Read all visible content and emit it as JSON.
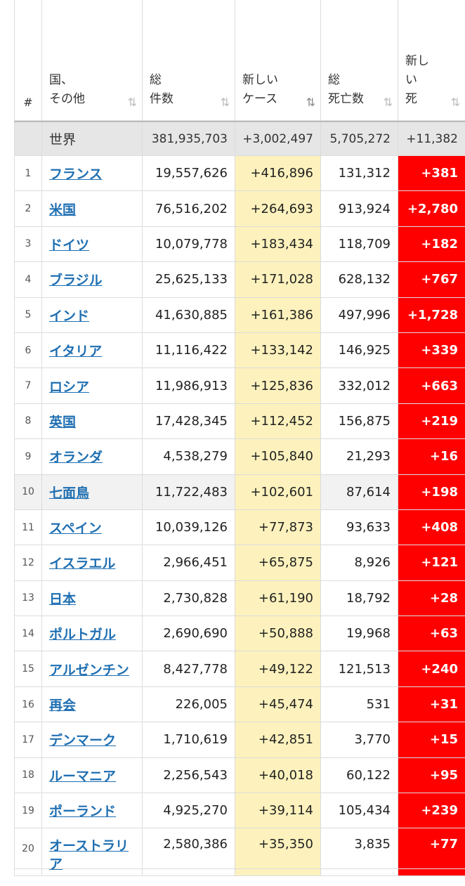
{
  "header": {
    "num": "#",
    "country": "国、\nその他",
    "total_cases": "総\n件数",
    "new_cases": "新しい\nケース",
    "total_deaths": "総\n死亡数",
    "new_deaths": "新し\nい\n死",
    "sort_icon": "⇅"
  },
  "world": {
    "label": "世界",
    "total_cases": "381,935,703",
    "new_cases": "+3,002,497",
    "total_deaths": "5,705,272",
    "new_deaths": "+11,382"
  },
  "rows": [
    {
      "num": "1",
      "country": "フランス",
      "total": "19,557,626",
      "new": "+416,896",
      "deaths": "131,312",
      "new_deaths": "+381"
    },
    {
      "num": "2",
      "country": "米国",
      "total": "76,516,202",
      "new": "+264,693",
      "deaths": "913,924",
      "new_deaths": "+2,780"
    },
    {
      "num": "3",
      "country": "ドイツ",
      "total": "10,079,778",
      "new": "+183,434",
      "deaths": "118,709",
      "new_deaths": "+182"
    },
    {
      "num": "4",
      "country": "ブラジル",
      "total": "25,625,133",
      "new": "+171,028",
      "deaths": "628,132",
      "new_deaths": "+767"
    },
    {
      "num": "5",
      "country": "インド",
      "total": "41,630,885",
      "new": "+161,386",
      "deaths": "497,996",
      "new_deaths": "+1,728"
    },
    {
      "num": "6",
      "country": "イタリア",
      "total": "11,116,422",
      "new": "+133,142",
      "deaths": "146,925",
      "new_deaths": "+339"
    },
    {
      "num": "7",
      "country": "ロシア",
      "total": "11,986,913",
      "new": "+125,836",
      "deaths": "332,012",
      "new_deaths": "+663"
    },
    {
      "num": "8",
      "country": "英国",
      "total": "17,428,345",
      "new": "+112,452",
      "deaths": "156,875",
      "new_deaths": "+219"
    },
    {
      "num": "9",
      "country": "オランダ",
      "total": "4,538,279",
      "new": "+105,840",
      "deaths": "21,293",
      "new_deaths": "+16"
    },
    {
      "num": "10",
      "country": "七面鳥",
      "total": "11,722,483",
      "new": "+102,601",
      "deaths": "87,614",
      "new_deaths": "+198"
    },
    {
      "num": "11",
      "country": "スペイン",
      "total": "10,039,126",
      "new": "+77,873",
      "deaths": "93,633",
      "new_deaths": "+408"
    },
    {
      "num": "12",
      "country": "イスラエル",
      "total": "2,966,451",
      "new": "+65,875",
      "deaths": "8,926",
      "new_deaths": "+121"
    },
    {
      "num": "13",
      "country": "日本",
      "total": "2,730,828",
      "new": "+61,190",
      "deaths": "18,792",
      "new_deaths": "+28"
    },
    {
      "num": "14",
      "country": "ポルトガル",
      "total": "2,690,690",
      "new": "+50,888",
      "deaths": "19,968",
      "new_deaths": "+63"
    },
    {
      "num": "15",
      "country": "アルゼンチン",
      "total": "8,427,778",
      "new": "+49,122",
      "deaths": "121,513",
      "new_deaths": "+240"
    },
    {
      "num": "16",
      "country": "再会",
      "total": "226,005",
      "new": "+45,474",
      "deaths": "531",
      "new_deaths": "+31"
    },
    {
      "num": "17",
      "country": "デンマーク",
      "total": "1,710,619",
      "new": "+42,851",
      "deaths": "3,770",
      "new_deaths": "+15"
    },
    {
      "num": "18",
      "country": "ルーマニア",
      "total": "2,256,543",
      "new": "+40,018",
      "deaths": "60,122",
      "new_deaths": "+95"
    },
    {
      "num": "19",
      "country": "ポーランド",
      "total": "4,925,270",
      "new": "+39,114",
      "deaths": "105,434",
      "new_deaths": "+239"
    },
    {
      "num": "20",
      "country": "オーストラリア",
      "total": "2,580,386",
      "new": "+35,350",
      "deaths": "3,835",
      "new_deaths": "+77"
    }
  ]
}
